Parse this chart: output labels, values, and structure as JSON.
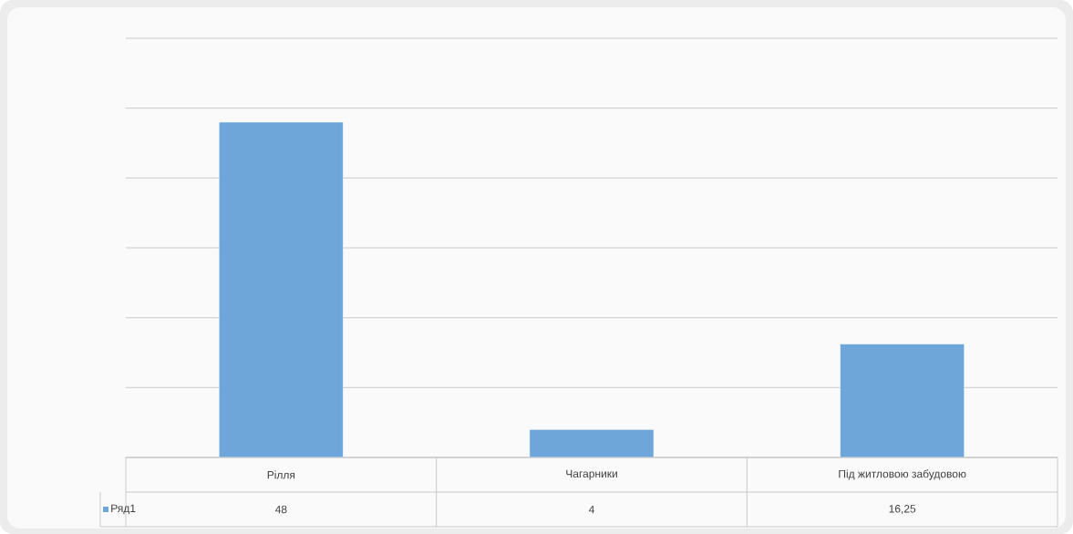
{
  "chart_data": {
    "type": "bar",
    "categories": [
      "Рілля",
      "Чагарники",
      "Під житловою забудовою"
    ],
    "series": [
      {
        "name": "Ряд1",
        "color": "#6fa6da",
        "values": [
          48,
          4,
          16.25
        ],
        "value_labels": [
          "48",
          "4",
          "16,25"
        ]
      }
    ],
    "ylim": [
      0,
      60
    ],
    "yticks": [
      {
        "value": 0,
        "label": null
      },
      {
        "value": 10,
        "label": null
      },
      {
        "value": 20,
        "label": null
      },
      {
        "value": 30,
        "label": null
      },
      {
        "value": 40,
        "label": null
      },
      {
        "value": 50,
        "label": null
      },
      {
        "value": 60,
        "label": null
      }
    ],
    "grid": "y",
    "legend": "bottom left"
  }
}
